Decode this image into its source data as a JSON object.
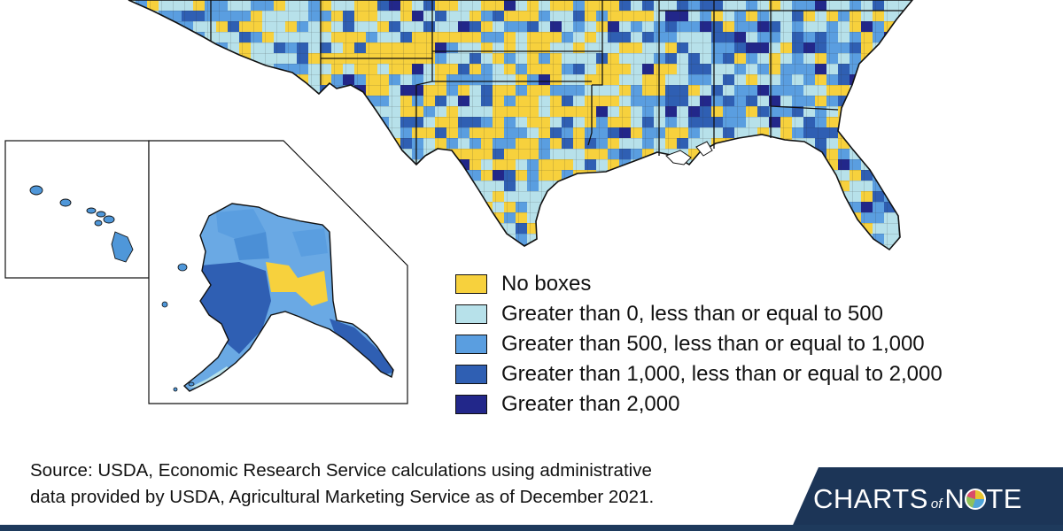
{
  "legend": {
    "items": [
      {
        "label": "No boxes",
        "color": "#f7d13d"
      },
      {
        "label": "Greater than 0, less than or equal to 500",
        "color": "#b7e1ea"
      },
      {
        "label": "Greater than 500, less than or equal to 1,000",
        "color": "#5a9ee0"
      },
      {
        "label": "Greater than 1,000, less than or equal to 2,000",
        "color": "#2f5fb3"
      },
      {
        "label": "Greater than 2,000",
        "color": "#22278a"
      }
    ]
  },
  "source": {
    "line1": "Source: USDA, Economic Research Service calculations using administrative",
    "line2": "data provided by USDA, Agricultural Marketing Service as of December 2021."
  },
  "brand": {
    "word1": "CHARTS",
    "word2": "of",
    "word3_start": "N",
    "word3_end": "TE",
    "panel_color": "#1c3557"
  }
}
